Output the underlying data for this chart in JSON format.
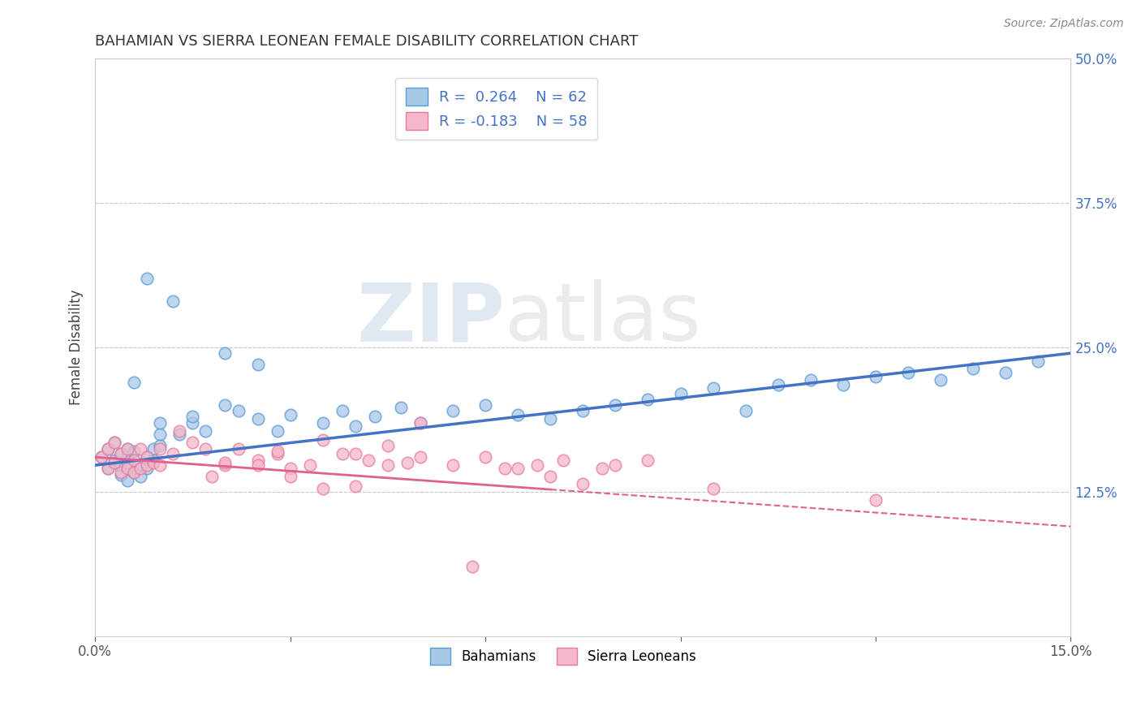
{
  "title": "BAHAMIAN VS SIERRA LEONEAN FEMALE DISABILITY CORRELATION CHART",
  "source": "Source: ZipAtlas.com",
  "ylabel": "Female Disability",
  "xlim": [
    0.0,
    0.15
  ],
  "ylim": [
    0.0,
    0.5
  ],
  "yticks_right": [
    0.125,
    0.25,
    0.375,
    0.5
  ],
  "ytickslabels_right": [
    "12.5%",
    "25.0%",
    "37.5%",
    "50.0%"
  ],
  "blue_color": "#a8c8e8",
  "pink_color": "#f4b8c8",
  "blue_edge_color": "#5b9bd5",
  "pink_edge_color": "#e87aa0",
  "blue_line_color": "#4472c4",
  "pink_line_color": "#e06090",
  "R_blue": 0.264,
  "N_blue": 62,
  "R_pink": -0.183,
  "N_pink": 58,
  "legend_label_blue": "Bahamians",
  "legend_label_pink": "Sierra Leoneans",
  "watermark_zip": "ZIP",
  "watermark_atlas": "atlas",
  "grid_color": "#c8c8c8",
  "background_color": "#ffffff",
  "blue_points_x": [
    0.001,
    0.002,
    0.002,
    0.003,
    0.003,
    0.004,
    0.004,
    0.004,
    0.005,
    0.005,
    0.005,
    0.005,
    0.006,
    0.006,
    0.007,
    0.007,
    0.008,
    0.008,
    0.009,
    0.009,
    0.01,
    0.01,
    0.012,
    0.013,
    0.015,
    0.017,
    0.02,
    0.022,
    0.025,
    0.028,
    0.03,
    0.035,
    0.038,
    0.04,
    0.043,
    0.047,
    0.05,
    0.055,
    0.06,
    0.065,
    0.07,
    0.075,
    0.08,
    0.085,
    0.09,
    0.095,
    0.1,
    0.105,
    0.11,
    0.115,
    0.12,
    0.125,
    0.13,
    0.135,
    0.14,
    0.145,
    0.02,
    0.025,
    0.015,
    0.01,
    0.008,
    0.006
  ],
  "blue_points_y": [
    0.155,
    0.162,
    0.145,
    0.168,
    0.152,
    0.14,
    0.158,
    0.148,
    0.15,
    0.162,
    0.135,
    0.155,
    0.142,
    0.16,
    0.148,
    0.138,
    0.155,
    0.145,
    0.162,
    0.152,
    0.175,
    0.165,
    0.29,
    0.175,
    0.185,
    0.178,
    0.2,
    0.195,
    0.188,
    0.178,
    0.192,
    0.185,
    0.195,
    0.182,
    0.19,
    0.198,
    0.185,
    0.195,
    0.2,
    0.192,
    0.188,
    0.195,
    0.2,
    0.205,
    0.21,
    0.215,
    0.195,
    0.218,
    0.222,
    0.218,
    0.225,
    0.228,
    0.222,
    0.232,
    0.228,
    0.238,
    0.245,
    0.235,
    0.19,
    0.185,
    0.31,
    0.22
  ],
  "pink_points_x": [
    0.001,
    0.002,
    0.002,
    0.003,
    0.003,
    0.004,
    0.004,
    0.005,
    0.005,
    0.006,
    0.006,
    0.007,
    0.007,
    0.008,
    0.008,
    0.009,
    0.01,
    0.01,
    0.012,
    0.013,
    0.015,
    0.017,
    0.02,
    0.022,
    0.025,
    0.028,
    0.03,
    0.033,
    0.038,
    0.042,
    0.045,
    0.05,
    0.055,
    0.06,
    0.063,
    0.068,
    0.072,
    0.078,
    0.08,
    0.085,
    0.05,
    0.035,
    0.04,
    0.045,
    0.018,
    0.02,
    0.025,
    0.03,
    0.035,
    0.04,
    0.12,
    0.095,
    0.028,
    0.048,
    0.058,
    0.065,
    0.07,
    0.075
  ],
  "pink_points_y": [
    0.155,
    0.145,
    0.162,
    0.15,
    0.168,
    0.142,
    0.158,
    0.145,
    0.162,
    0.152,
    0.142,
    0.145,
    0.162,
    0.155,
    0.148,
    0.15,
    0.148,
    0.162,
    0.158,
    0.178,
    0.168,
    0.162,
    0.148,
    0.162,
    0.152,
    0.158,
    0.145,
    0.148,
    0.158,
    0.152,
    0.165,
    0.155,
    0.148,
    0.155,
    0.145,
    0.148,
    0.152,
    0.145,
    0.148,
    0.152,
    0.185,
    0.17,
    0.158,
    0.148,
    0.138,
    0.15,
    0.148,
    0.138,
    0.128,
    0.13,
    0.118,
    0.128,
    0.16,
    0.15,
    0.06,
    0.145,
    0.138,
    0.132
  ]
}
